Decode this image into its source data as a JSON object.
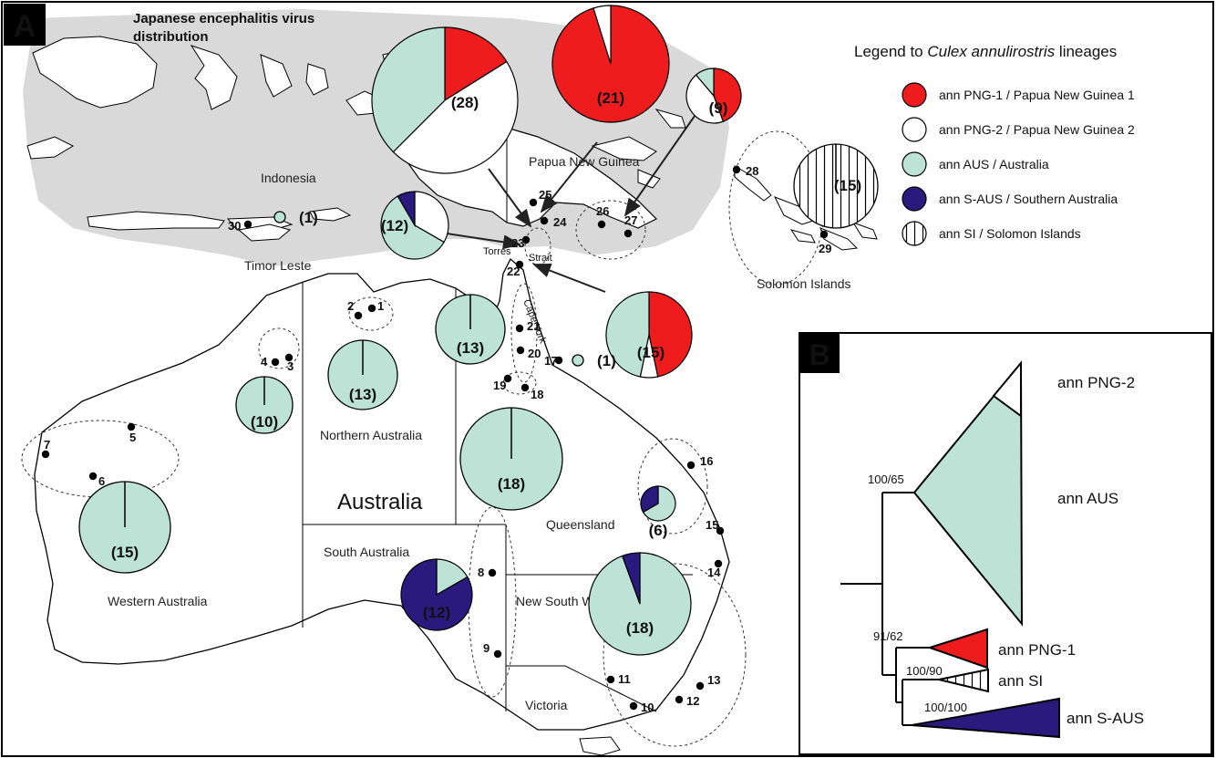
{
  "colors": {
    "png1": "#ee1c1c",
    "png2": "#ffffff",
    "aus": "#bde3d7",
    "saus": "#2a1a7e",
    "si": "#ffffff",
    "je_region": "#d9d9d9",
    "stroke": "#000000"
  },
  "panel_a": {
    "letter": "A",
    "je_title_line1": "Japanese encephalitis virus",
    "je_title_line2": "distribution",
    "countries": {
      "indonesia": "Indonesia",
      "png": "Papua New Guinea",
      "timor": "Timor Leste",
      "solomon": "Solomon Islands",
      "australia": "Australia"
    },
    "states": {
      "wa": "Western Australia",
      "na": "Northern Australia",
      "qld": "Queensland",
      "sa": "South Australia",
      "nsw": "New South Wales",
      "vic": "Victoria"
    },
    "features": {
      "torres": "Torres",
      "strait": "Strait",
      "cape_york": "Cape York"
    },
    "sites": [
      "1",
      "2",
      "3",
      "4",
      "5",
      "6",
      "7",
      "8",
      "9",
      "10",
      "11",
      "12",
      "13",
      "14",
      "15",
      "16",
      "17",
      "18",
      "19",
      "20",
      "21",
      "22",
      "23",
      "24",
      "25",
      "26",
      "27",
      "28",
      "29",
      "30"
    ],
    "pies": [
      {
        "id": "png-28",
        "label": "(28)",
        "n": 28,
        "fractions": {
          "png1": 0.161,
          "png2": 0.464,
          "aus": 0.375
        }
      },
      {
        "id": "png-21",
        "label": "(21)",
        "n": 21,
        "fractions": {
          "png1": 0.952,
          "png2": 0.048
        }
      },
      {
        "id": "png-9",
        "label": "(9)",
        "n": 9,
        "fractions": {
          "png1": 0.444,
          "png2": 0.444,
          "aus": 0.112
        }
      },
      {
        "id": "si-15",
        "label": "(15)",
        "n": 15,
        "fractions": {
          "si": 1.0
        }
      },
      {
        "id": "torres-12",
        "label": "(12)",
        "n": 12,
        "fractions": {
          "aus": 0.583,
          "png2": 0.333,
          "saus": 0.084
        }
      },
      {
        "id": "cape-15",
        "label": "(15)",
        "n": 15,
        "fractions": {
          "png1": 0.467,
          "png2": 0.066,
          "aus": 0.467
        }
      },
      {
        "id": "timor-1",
        "label": "(1)",
        "n": 1,
        "fractions": {
          "aus": 1.0
        }
      },
      {
        "id": "qld-1",
        "label": "(1)",
        "n": 1,
        "fractions": {
          "aus": 1.0
        }
      },
      {
        "id": "na-13a",
        "label": "(13)",
        "n": 13,
        "fractions": {
          "aus": 1.0
        }
      },
      {
        "id": "na-13b",
        "label": "(13)",
        "n": 13,
        "fractions": {
          "aus": 1.0
        }
      },
      {
        "id": "wa-10",
        "label": "(10)",
        "n": 10,
        "fractions": {
          "aus": 1.0
        }
      },
      {
        "id": "qld-18",
        "label": "(18)",
        "n": 18,
        "fractions": {
          "aus": 1.0
        }
      },
      {
        "id": "wa-15",
        "label": "(15)",
        "n": 15,
        "fractions": {
          "aus": 1.0
        }
      },
      {
        "id": "qld-6",
        "label": "(6)",
        "n": 6,
        "fractions": {
          "saus": 0.333,
          "aus": 0.667
        }
      },
      {
        "id": "sa-12",
        "label": "(12)",
        "n": 12,
        "fractions": {
          "saus": 0.833,
          "aus": 0.167
        }
      },
      {
        "id": "nsw-18",
        "label": "(18)",
        "n": 18,
        "fractions": {
          "saus": 0.056,
          "aus": 0.944
        }
      }
    ]
  },
  "legend": {
    "title_prefix": "Legend to ",
    "title_italic": "Culex annulirostris",
    "title_suffix": " lineages",
    "items": [
      {
        "key": "png1",
        "label": "ann PNG-1 / Papua New Guinea 1"
      },
      {
        "key": "png2",
        "label": "ann PNG-2 / Papua New Guinea 2"
      },
      {
        "key": "aus",
        "label": "ann AUS  / Australia"
      },
      {
        "key": "saus",
        "label": "ann S-AUS  / Southern Australia"
      },
      {
        "key": "si",
        "label": "ann SI  / Solomon Islands"
      }
    ]
  },
  "panel_b": {
    "letter": "B",
    "clades": {
      "png2": "ann PNG-2",
      "aus": "ann AUS",
      "png1": "ann PNG-1",
      "si": "ann SI",
      "saus": "ann S-AUS"
    },
    "support": {
      "aus_node": "100/65",
      "png1_node": "91/62",
      "si_node": "100/90",
      "saus_node": "100/100"
    }
  }
}
